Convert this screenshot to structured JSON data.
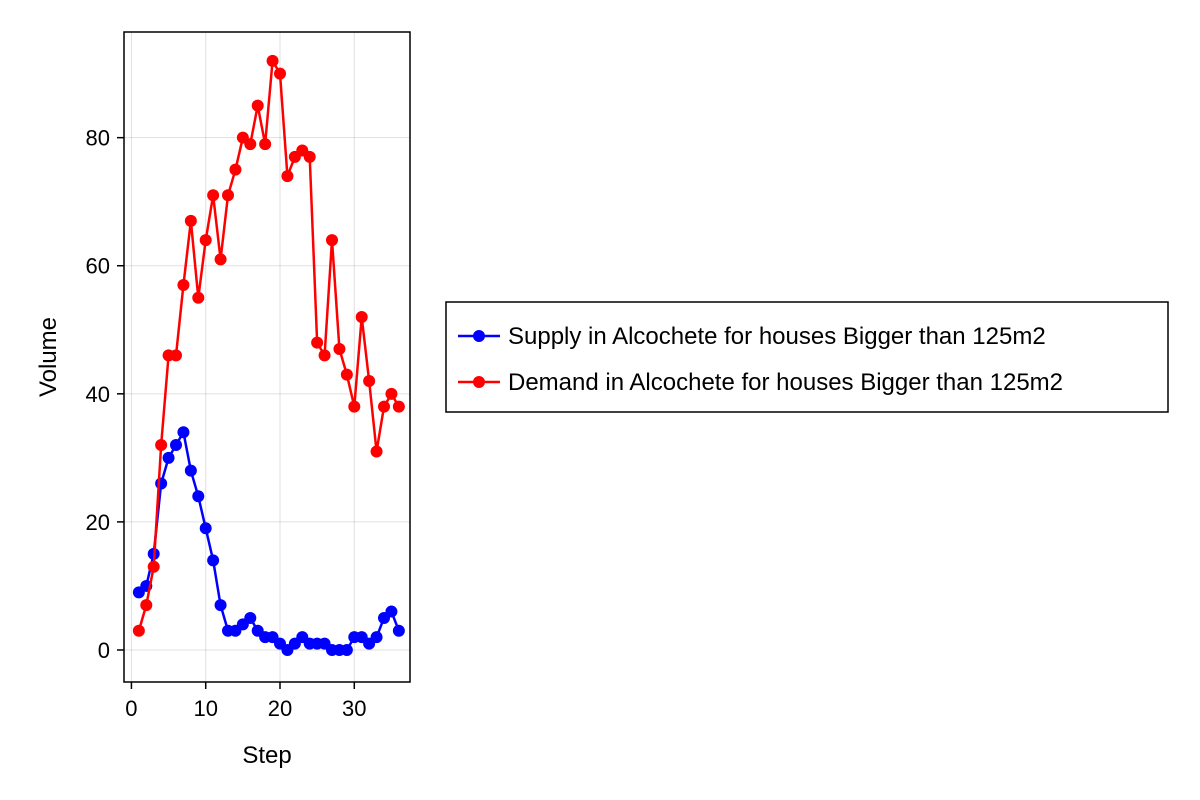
{
  "chart_data": {
    "type": "line",
    "title": "",
    "xlabel": "Step",
    "ylabel": "Volume",
    "xlim": [
      -1,
      37.5
    ],
    "ylim": [
      -5,
      96.5
    ],
    "xticks": [
      0,
      10,
      20,
      30
    ],
    "yticks": [
      0,
      20,
      40,
      60,
      80
    ],
    "grid": true,
    "legend_position": "right",
    "x": [
      1,
      2,
      3,
      4,
      5,
      6,
      7,
      8,
      9,
      10,
      11,
      12,
      13,
      14,
      15,
      16,
      17,
      18,
      19,
      20,
      21,
      22,
      23,
      24,
      25,
      26,
      27,
      28,
      29,
      30,
      31,
      32,
      33,
      34,
      35,
      36
    ],
    "series": [
      {
        "name": "Supply in Alcochete for houses Bigger than 125m2",
        "color": "#0000ff",
        "values": [
          9,
          10,
          15,
          26,
          30,
          32,
          34,
          28,
          24,
          19,
          14,
          7,
          3,
          3,
          4,
          5,
          3,
          2,
          2,
          1,
          0,
          1,
          2,
          1,
          1,
          1,
          0,
          0,
          0,
          2,
          2,
          1,
          2,
          5,
          6,
          3
        ]
      },
      {
        "name": "Demand in Alcochete for houses Bigger than 125m2",
        "color": "#ff0000",
        "values": [
          3,
          7,
          13,
          32,
          46,
          46,
          57,
          67,
          55,
          64,
          71,
          61,
          71,
          75,
          80,
          79,
          85,
          79,
          92,
          90,
          74,
          77,
          78,
          77,
          48,
          46,
          64,
          47,
          43,
          38,
          52,
          42,
          31,
          38,
          40,
          38
        ]
      }
    ]
  }
}
